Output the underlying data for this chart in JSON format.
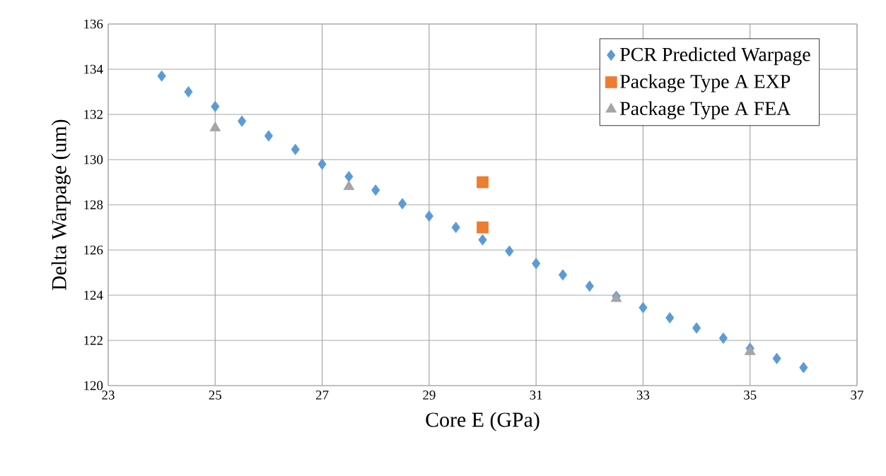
{
  "chart_data": {
    "type": "scatter",
    "xlabel": "Core E (GPa)",
    "ylabel": "Delta Warpage (um)",
    "xlim": [
      23,
      37
    ],
    "xticks": [
      23,
      25,
      27,
      29,
      31,
      33,
      35,
      37
    ],
    "ylim": [
      120,
      136
    ],
    "yticks": [
      120,
      122,
      124,
      126,
      128,
      130,
      132,
      134,
      136
    ],
    "grid": true,
    "legend": "top right",
    "series": [
      {
        "name": "PCR Predicted Warpage",
        "color": "#5b9bd5",
        "marker": "diamond",
        "x": [
          24,
          24.5,
          25,
          25.5,
          26,
          26.5,
          27,
          27.5,
          28,
          28.5,
          29,
          29.5,
          30,
          30.5,
          31,
          31.5,
          32,
          32.5,
          33,
          33.5,
          34,
          34.5,
          35,
          35.5,
          36
        ],
        "values": [
          133.7,
          133.0,
          132.35,
          131.7,
          131.05,
          130.45,
          129.8,
          129.25,
          128.65,
          128.05,
          127.5,
          127.0,
          126.45,
          125.95,
          125.4,
          124.9,
          124.4,
          123.95,
          123.45,
          123.0,
          122.55,
          122.1,
          121.65,
          121.2,
          120.8
        ]
      },
      {
        "name": "Package Type A EXP",
        "color": "#ed7d31",
        "marker": "square",
        "x": [
          30,
          30
        ],
        "values": [
          129,
          127
        ]
      },
      {
        "name": "Package Type A FEA",
        "color": "#a5a5a5",
        "marker": "triangle",
        "x": [
          25,
          27.5,
          32.5,
          35
        ],
        "values": [
          131.4,
          128.8,
          123.85,
          121.5
        ]
      }
    ]
  }
}
